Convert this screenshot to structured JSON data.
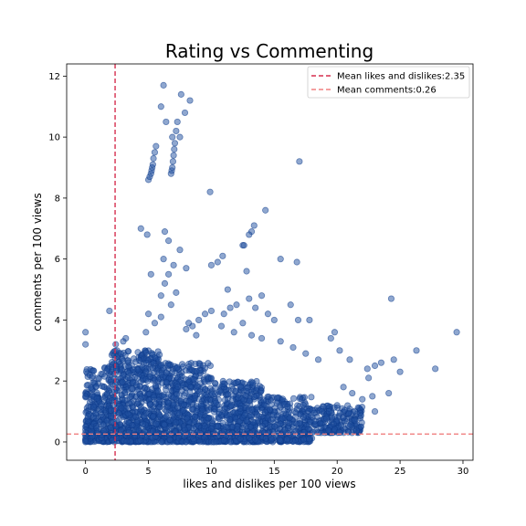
{
  "chart_data": {
    "type": "scatter",
    "title": "Rating vs Commenting",
    "xlabel": "likes and dislikes per 100 views",
    "ylabel": "comments per 100 views",
    "xlim": [
      -1.5,
      30.8
    ],
    "ylim": [
      -0.6,
      12.4
    ],
    "xticks": [
      0,
      5,
      10,
      15,
      20,
      25,
      30
    ],
    "yticks": [
      0,
      2,
      4,
      6,
      8,
      10,
      12
    ],
    "grid": false,
    "legend_position": "top-right",
    "colors": {
      "points": "#1f4fa0",
      "points_edge": "#0d3b8a",
      "mean_x_line": "#d62f4f",
      "mean_y_line": "#f08080"
    },
    "reference_lines": [
      {
        "orientation": "vertical",
        "value": 2.35,
        "label": "Mean likes and dislikes:2.35"
      },
      {
        "orientation": "horizontal",
        "value": 0.26,
        "label": "Mean comments:0.26"
      }
    ],
    "series": [
      {
        "points": [
          [
            5.0,
            8.6
          ],
          [
            5.1,
            8.7
          ],
          [
            5.2,
            8.8
          ],
          [
            5.25,
            8.9
          ],
          [
            5.3,
            9.0
          ],
          [
            5.35,
            9.1
          ],
          [
            5.4,
            9.3
          ],
          [
            5.5,
            9.5
          ],
          [
            5.6,
            9.7
          ],
          [
            6.2,
            11.7
          ],
          [
            6.0,
            11.0
          ],
          [
            6.4,
            10.5
          ],
          [
            6.8,
            8.8
          ],
          [
            6.85,
            8.9
          ],
          [
            6.9,
            9.0
          ],
          [
            6.95,
            9.2
          ],
          [
            7.0,
            9.4
          ],
          [
            7.05,
            9.6
          ],
          [
            7.1,
            9.8
          ],
          [
            6.9,
            10.0
          ],
          [
            7.2,
            10.2
          ],
          [
            7.3,
            10.5
          ],
          [
            7.6,
            11.4
          ],
          [
            7.9,
            10.8
          ],
          [
            8.3,
            11.2
          ],
          [
            7.5,
            10.0
          ],
          [
            9.9,
            8.2
          ],
          [
            17.0,
            9.2
          ],
          [
            14.3,
            7.6
          ],
          [
            13.4,
            7.1
          ],
          [
            13.2,
            6.9
          ],
          [
            13.0,
            6.8
          ],
          [
            12.5,
            6.45
          ],
          [
            12.6,
            6.45
          ],
          [
            4.4,
            7.0
          ],
          [
            4.9,
            6.8
          ],
          [
            6.3,
            6.9
          ],
          [
            6.6,
            6.6
          ],
          [
            7.5,
            6.3
          ],
          [
            6.2,
            6.0
          ],
          [
            8.0,
            5.7
          ],
          [
            10.9,
            6.1
          ],
          [
            10.5,
            5.9
          ],
          [
            10.0,
            5.8
          ],
          [
            11.3,
            5.0
          ],
          [
            12.8,
            5.6
          ],
          [
            15.5,
            6.0
          ],
          [
            16.8,
            5.9
          ],
          [
            13.0,
            4.7
          ],
          [
            14.0,
            4.8
          ],
          [
            16.3,
            4.5
          ],
          [
            16.9,
            4.0
          ],
          [
            17.8,
            4.0
          ],
          [
            19.8,
            3.6
          ],
          [
            24.3,
            4.7
          ],
          [
            29.5,
            3.6
          ],
          [
            26.3,
            3.0
          ],
          [
            27.8,
            2.4
          ],
          [
            25.0,
            2.3
          ],
          [
            23.0,
            2.5
          ],
          [
            21.0,
            2.7
          ],
          [
            22.4,
            2.4
          ],
          [
            20.2,
            3.0
          ],
          [
            19.5,
            3.4
          ],
          [
            23.5,
            2.6
          ],
          [
            24.5,
            2.7
          ],
          [
            22.8,
            1.5
          ],
          [
            22.0,
            1.4
          ],
          [
            20.5,
            1.8
          ],
          [
            21.2,
            1.6
          ],
          [
            22.5,
            2.1
          ],
          [
            24.1,
            1.6
          ],
          [
            23.0,
            1.0
          ],
          [
            18.8,
            1.0
          ],
          [
            20.0,
            1.2
          ],
          [
            0,
            3.6
          ],
          [
            0,
            3.2
          ],
          [
            0,
            1.6
          ],
          [
            0,
            1.5
          ],
          [
            0,
            0.5
          ],
          [
            0,
            0.4
          ],
          [
            0,
            0.3
          ],
          [
            0,
            0.2
          ],
          [
            0,
            0.1
          ],
          [
            0,
            0.05
          ],
          [
            0,
            0.0
          ],
          [
            1.9,
            4.3
          ],
          [
            2.4,
            3.2
          ],
          [
            2.5,
            3.0
          ],
          [
            2.8,
            2.9
          ],
          [
            3.0,
            3.3
          ],
          [
            3.2,
            3.4
          ],
          [
            3.0,
            2.2
          ],
          [
            6.0,
            4.8
          ],
          [
            6.3,
            5.2
          ],
          [
            6.6,
            5.5
          ],
          [
            7.0,
            5.8
          ],
          [
            5.2,
            5.5
          ],
          [
            5.0,
            4.2
          ],
          [
            5.5,
            3.9
          ],
          [
            6.0,
            4.1
          ],
          [
            6.8,
            4.5
          ],
          [
            7.2,
            4.9
          ],
          [
            4.8,
            3.6
          ],
          [
            9.0,
            4.0
          ],
          [
            9.5,
            4.2
          ],
          [
            10.0,
            4.3
          ],
          [
            8.5,
            3.8
          ],
          [
            8.8,
            3.5
          ],
          [
            11.0,
            4.2
          ],
          [
            11.5,
            4.4
          ],
          [
            12.0,
            4.5
          ],
          [
            13.5,
            4.4
          ],
          [
            14.5,
            4.2
          ],
          [
            15.0,
            4.0
          ],
          [
            8.0,
            3.7
          ],
          [
            8.2,
            3.9
          ],
          [
            12.5,
            3.9
          ],
          [
            10.8,
            3.8
          ],
          [
            11.8,
            3.6
          ],
          [
            13.2,
            3.5
          ],
          [
            14.0,
            3.4
          ],
          [
            15.5,
            3.3
          ],
          [
            16.5,
            3.1
          ],
          [
            17.5,
            2.9
          ],
          [
            18.5,
            2.7
          ],
          [
            9.6,
            0.0
          ],
          [
            9.8,
            0.0
          ],
          [
            10.0,
            0.0
          ],
          [
            10.2,
            0.0
          ],
          [
            10.4,
            0.0
          ],
          [
            7.7,
            0.0
          ],
          [
            8.0,
            0.0
          ],
          [
            11.0,
            0.05
          ],
          [
            12.3,
            0.1
          ],
          [
            14.8,
            0.1
          ]
        ],
        "dense_region_estimate": [
          {
            "x_from": 0,
            "x_to": 2,
            "y_from": 0,
            "y_to": 2.5
          },
          {
            "x_from": 2,
            "x_to": 6,
            "y_from": 0,
            "y_to": 3.0
          },
          {
            "x_from": 6,
            "x_to": 10,
            "y_from": 0,
            "y_to": 2.6
          },
          {
            "x_from": 10,
            "x_to": 14,
            "y_from": 0,
            "y_to": 2.0
          },
          {
            "x_from": 14,
            "x_to": 18,
            "y_from": 0,
            "y_to": 1.5
          },
          {
            "x_from": 18,
            "x_to": 22,
            "y_from": 0.3,
            "y_to": 1.2
          }
        ]
      }
    ]
  }
}
